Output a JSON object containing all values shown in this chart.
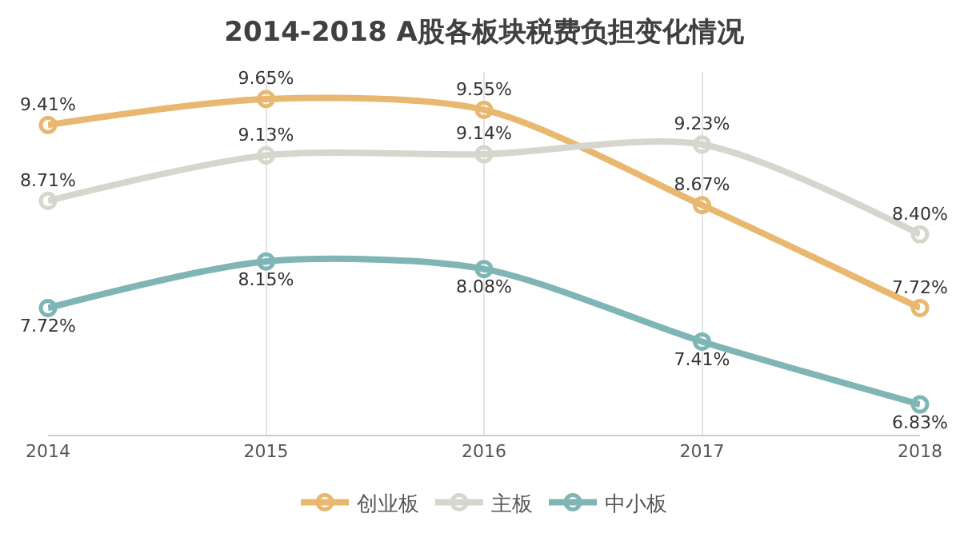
{
  "chart_data": {
    "type": "line",
    "title": "2014-2018 A股各板块税费负担变化情况",
    "categories": [
      "2014",
      "2015",
      "2016",
      "2017",
      "2018"
    ],
    "series": [
      {
        "name": "创业板",
        "color": "#e8b870",
        "values": [
          9.41,
          9.65,
          9.55,
          8.67,
          7.72
        ],
        "value_labels": [
          "9.41%",
          "9.65%",
          "9.55%",
          "8.67%",
          "7.72%"
        ]
      },
      {
        "name": "主板",
        "color": "#d6d6cc",
        "values": [
          8.71,
          9.13,
          9.14,
          9.23,
          8.4
        ],
        "value_labels": [
          "8.71%",
          "9.13%",
          "9.14%",
          "9.23%",
          "8.40%"
        ]
      },
      {
        "name": "中小板",
        "color": "#7fb5b5",
        "values": [
          7.72,
          8.15,
          8.08,
          7.41,
          6.83
        ],
        "value_labels": [
          "7.72%",
          "8.15%",
          "8.08%",
          "7.41%",
          "6.83%"
        ]
      }
    ],
    "grid": "x",
    "legend": "bottom",
    "marker": "circle",
    "line_style": "solid"
  }
}
